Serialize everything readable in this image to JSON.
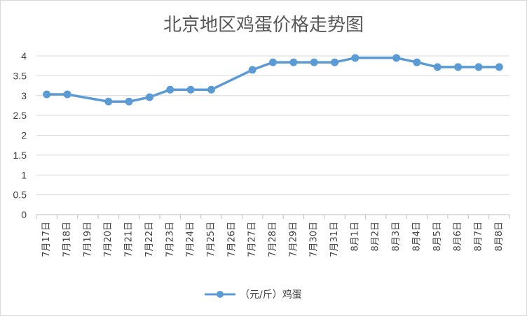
{
  "chart_data": {
    "type": "line",
    "title": "北京地区鸡蛋价格走势图",
    "categories": [
      "7月17日",
      "7月18日",
      "7月19日",
      "7月20日",
      "7月21日",
      "7月22日",
      "7月23日",
      "7月24日",
      "7月25日",
      "7月26日",
      "7月27日",
      "7月28日",
      "7月29日",
      "7月30日",
      "7月31日",
      "8月1日",
      "8月2日",
      "8月3日",
      "8月4日",
      "8月5日",
      "8月6日",
      "8月7日",
      "8月8日"
    ],
    "series": [
      {
        "name": "（元/斤）鸡蛋",
        "values": [
          3.03,
          3.03,
          null,
          2.85,
          2.85,
          2.96,
          3.15,
          3.15,
          3.15,
          null,
          3.65,
          3.84,
          3.84,
          3.84,
          3.84,
          3.95,
          null,
          3.95,
          3.84,
          3.72,
          3.72,
          3.72,
          3.72
        ],
        "color": "#5b9bd5"
      }
    ],
    "y_ticks": [
      "0",
      "0.5",
      "1",
      "1.5",
      "2",
      "2.5",
      "3",
      "3.5",
      "4"
    ],
    "ylim": [
      0,
      4
    ],
    "grid": true,
    "legend_position": "bottom",
    "xlabel": "",
    "ylabel": ""
  }
}
